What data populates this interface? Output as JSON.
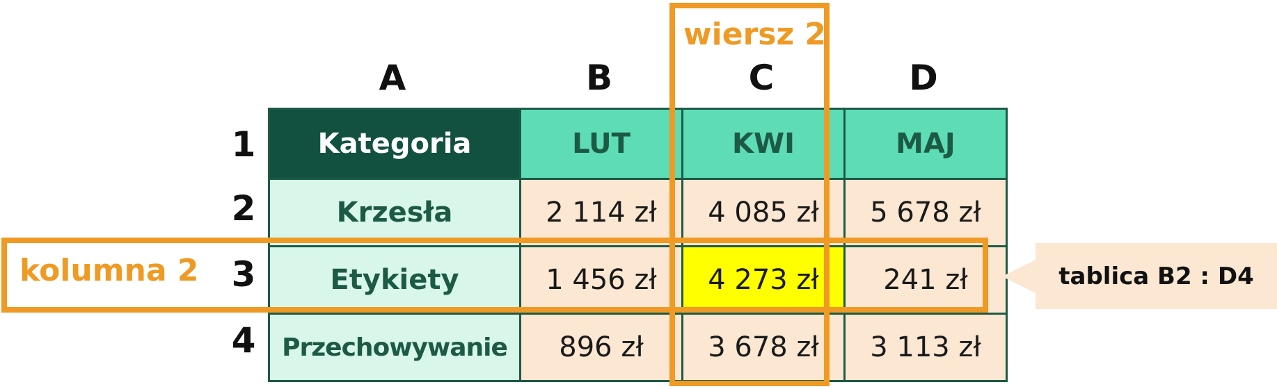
{
  "column_letters": [
    "A",
    "B",
    "C",
    "D"
  ],
  "row_numbers": [
    "1",
    "2",
    "3",
    "4"
  ],
  "table": {
    "header": [
      "Kategoria",
      "LUT",
      "KWI",
      "MAJ"
    ],
    "rows": [
      {
        "label": "Krzesła",
        "values": [
          "2 114 zł",
          "4 085 zł",
          "5 678 zł"
        ]
      },
      {
        "label": "Etykiety",
        "values": [
          "1 456 zł",
          "4 273 zł",
          "241 zł"
        ]
      },
      {
        "label": "Przechowywanie",
        "values": [
          "896 zł",
          "3 678 zł",
          "3 113 zł"
        ]
      }
    ]
  },
  "highlight_cell": "4 273 zł",
  "annotations": {
    "column_frame_label": "wiersz 2",
    "row_frame_label": "kolumna 2",
    "callout": "tablica B2 : D4"
  },
  "colors": {
    "accent_orange": "#ef9a24",
    "header_dark_green": "#12513f",
    "header_mint": "#5edcb5",
    "label_bg": "#d8f6ea",
    "value_bg": "#fbe7d2",
    "highlight_yellow": "#ffff00"
  }
}
